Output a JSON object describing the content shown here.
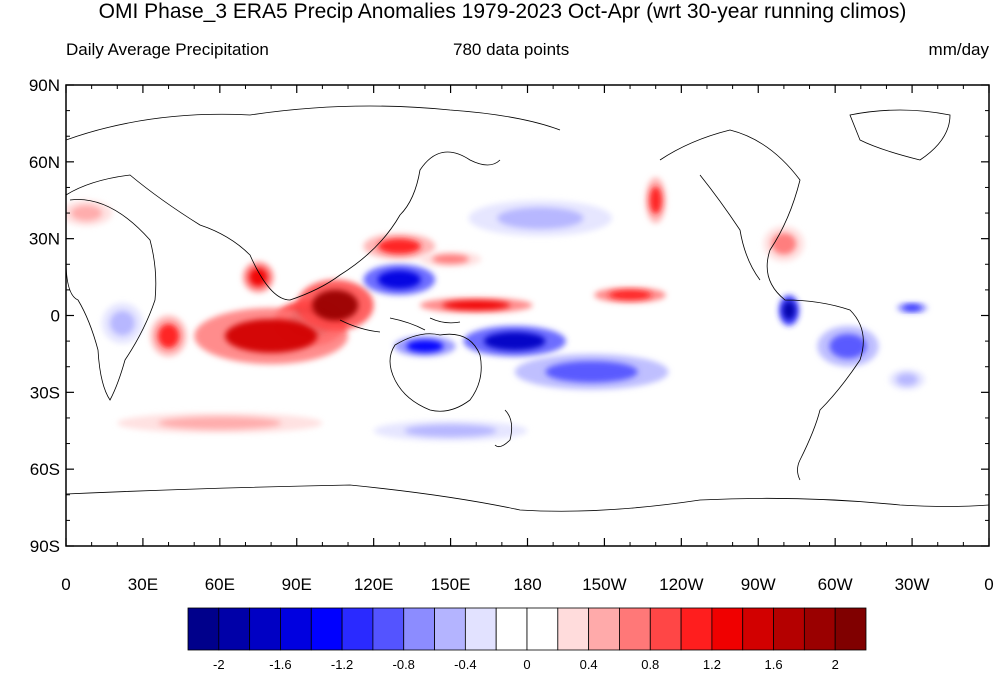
{
  "title": "OMI Phase_3 ERA5 Precip Anomalies 1979-2023 Oct-Apr (wrt 30-year running climos)",
  "subtitle_left": "Daily Average Precipitation",
  "subtitle_center": "780 data points",
  "subtitle_right": "mm/day",
  "map": {
    "lat_ticks": [
      "90N",
      "60N",
      "30N",
      "0",
      "30S",
      "60S",
      "90S"
    ],
    "lon_ticks": [
      "0",
      "30E",
      "60E",
      "90E",
      "120E",
      "150E",
      "180",
      "150W",
      "120W",
      "90W",
      "60W",
      "30W",
      "0"
    ],
    "lat_range": [
      -90,
      90
    ],
    "lon_range": [
      0,
      360
    ]
  },
  "colorbar": {
    "colors": [
      "#00008b",
      "#0000a8",
      "#0000c4",
      "#0000e0",
      "#0000ff",
      "#2a2aff",
      "#5454ff",
      "#8c8cff",
      "#b4b4ff",
      "#e2e2ff",
      "#ffffff",
      "#ffffff",
      "#ffdcdc",
      "#ffaaaa",
      "#ff7878",
      "#ff4646",
      "#ff1e1e",
      "#f00000",
      "#d20000",
      "#b40000",
      "#9a0000",
      "#800000"
    ],
    "tick_labels": [
      "-2",
      "-1.6",
      "-1.2",
      "-0.8",
      "-0.4",
      "0",
      "0.4",
      "0.8",
      "1.2",
      "1.6",
      "2"
    ]
  },
  "anomalies": [
    {
      "name": "indian-ocean-wet-core",
      "lon": 95,
      "lat": -3,
      "rx": 14,
      "ry": 9,
      "value": 2.1
    },
    {
      "name": "indian-ocean-wet",
      "lon": 80,
      "lat": -8,
      "rx": 30,
      "ry": 11,
      "value": 1.4
    },
    {
      "name": "maritime-wet",
      "lon": 105,
      "lat": 4,
      "rx": 15,
      "ry": 10,
      "value": 1.8
    },
    {
      "name": "east-africa-wet",
      "lon": 40,
      "lat": -8,
      "rx": 7,
      "ry": 8,
      "value": 1.0
    },
    {
      "name": "india-wet",
      "lon": 75,
      "lat": 15,
      "rx": 6,
      "ry": 6,
      "value": 1.2
    },
    {
      "name": "north-pacific-dry",
      "lon": 130,
      "lat": 14,
      "rx": 14,
      "ry": 6,
      "value": -1.6
    },
    {
      "name": "sp-dry-core",
      "lon": 175,
      "lat": -10,
      "rx": 20,
      "ry": 6,
      "value": -1.8
    },
    {
      "name": "sp-dry-band",
      "lon": 205,
      "lat": -22,
      "rx": 30,
      "ry": 7,
      "value": -0.9
    },
    {
      "name": "australia-dry",
      "lon": 140,
      "lat": -12,
      "rx": 12,
      "ry": 4,
      "value": -1.3
    },
    {
      "name": "east-asia-wet",
      "lon": 130,
      "lat": 27,
      "rx": 14,
      "ry": 5,
      "value": 1.0
    },
    {
      "name": "equatorial-wet-band",
      "lon": 160,
      "lat": 4,
      "rx": 22,
      "ry": 3,
      "value": 1.3
    },
    {
      "name": "npac-dry",
      "lon": 185,
      "lat": 38,
      "rx": 28,
      "ry": 7,
      "value": -0.6
    },
    {
      "name": "hawaii-wet",
      "lon": 220,
      "lat": 8,
      "rx": 14,
      "ry": 3,
      "value": 1.1
    },
    {
      "name": "alaska-wet",
      "lon": 230,
      "lat": 45,
      "rx": 4,
      "ry": 9,
      "value": 1.0
    },
    {
      "name": "panama-dry",
      "lon": 282,
      "lat": 2,
      "rx": 4,
      "ry": 6,
      "value": -2.0
    },
    {
      "name": "amazon-dry",
      "lon": 305,
      "lat": -12,
      "rx": 12,
      "ry": 8,
      "value": -0.9
    },
    {
      "name": "atlantic-dry",
      "lon": 330,
      "lat": 3,
      "rx": 6,
      "ry": 2,
      "value": -1.1
    },
    {
      "name": "gulf-wet",
      "lon": 280,
      "lat": 28,
      "rx": 8,
      "ry": 7,
      "value": 0.7
    },
    {
      "name": "south-atlantic-dry",
      "lon": 328,
      "lat": -25,
      "rx": 7,
      "ry": 4,
      "value": -0.6
    },
    {
      "name": "europe-wet",
      "lon": 8,
      "lat": 40,
      "rx": 10,
      "ry": 5,
      "value": 0.5
    },
    {
      "name": "nw-pacific-wet",
      "lon": 150,
      "lat": 22,
      "rx": 12,
      "ry": 3,
      "value": 0.6
    },
    {
      "name": "africa-dry",
      "lon": 22,
      "lat": -3,
      "rx": 8,
      "ry": 8,
      "value": -0.5
    },
    {
      "name": "southern-ocean-wet",
      "lon": 60,
      "lat": -42,
      "rx": 40,
      "ry": 4,
      "value": 0.5
    },
    {
      "name": "southern-ocean-dry",
      "lon": 150,
      "lat": -45,
      "rx": 30,
      "ry": 4,
      "value": -0.5
    }
  ]
}
